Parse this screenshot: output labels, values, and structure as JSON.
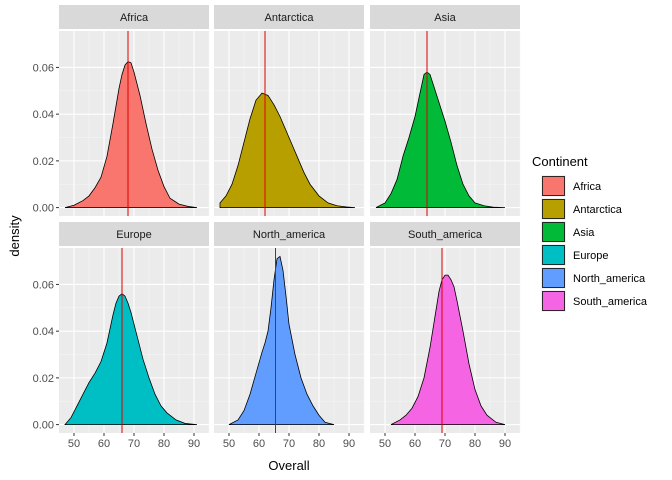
{
  "chart_data": {
    "type": "area",
    "facet_by": "Continent",
    "xlabel": "Overall",
    "ylabel": "density",
    "xlim": [
      45,
      95
    ],
    "ylim": [
      -0.0036,
      0.0756
    ],
    "x_ticks": [
      50,
      60,
      70,
      80,
      90
    ],
    "y_ticks": [
      0.0,
      0.02,
      0.04,
      0.06
    ],
    "y_tick_labels": [
      "0.00",
      "0.02",
      "0.04",
      "0.06"
    ],
    "grid": true,
    "legend": {
      "title": "Continent",
      "placement": "right"
    },
    "series": [
      {
        "name": "Africa",
        "color": "#F8766D",
        "vline": 68,
        "x": [
          47,
          50,
          53,
          55,
          57,
          59,
          61,
          63,
          65,
          66,
          67,
          68,
          69,
          70,
          72,
          74,
          76,
          78,
          80,
          82,
          85,
          88,
          91
        ],
        "y": [
          0.0,
          0.001,
          0.003,
          0.005,
          0.0085,
          0.013,
          0.022,
          0.036,
          0.051,
          0.057,
          0.061,
          0.0625,
          0.062,
          0.058,
          0.048,
          0.036,
          0.025,
          0.016,
          0.009,
          0.004,
          0.0015,
          0.0005,
          0.0
        ]
      },
      {
        "name": "Antarctica",
        "color": "#B79F00",
        "vline": 62,
        "x": [
          47,
          49,
          51,
          53,
          55,
          57,
          59,
          61,
          63,
          65,
          67,
          69,
          71,
          73,
          75,
          77,
          80,
          83,
          86,
          89,
          92
        ],
        "y": [
          0.002,
          0.005,
          0.01,
          0.018,
          0.028,
          0.038,
          0.046,
          0.049,
          0.048,
          0.044,
          0.039,
          0.033,
          0.027,
          0.021,
          0.015,
          0.01,
          0.005,
          0.002,
          0.0008,
          0.0003,
          0.0
        ]
      },
      {
        "name": "Asia",
        "color": "#00BA38",
        "vline": 64,
        "x": [
          47,
          50,
          52,
          54,
          56,
          58,
          60,
          62,
          63,
          64,
          65,
          66,
          67,
          68,
          70,
          72,
          74,
          76,
          78,
          80,
          83,
          86,
          90
        ],
        "y": [
          0.0,
          0.002,
          0.006,
          0.012,
          0.022,
          0.03,
          0.039,
          0.051,
          0.057,
          0.058,
          0.057,
          0.053,
          0.049,
          0.045,
          0.037,
          0.028,
          0.018,
          0.01,
          0.005,
          0.002,
          0.0008,
          0.0002,
          0.0
        ]
      },
      {
        "name": "Europe",
        "color": "#00BFC4",
        "vline": 66,
        "x": [
          47,
          49,
          51,
          53,
          55,
          57,
          59,
          61,
          63,
          64,
          65,
          66,
          67,
          68,
          69,
          71,
          73,
          75,
          77,
          79,
          81,
          84,
          87,
          91
        ],
        "y": [
          0.0,
          0.003,
          0.008,
          0.013,
          0.018,
          0.022,
          0.027,
          0.035,
          0.047,
          0.052,
          0.055,
          0.056,
          0.055,
          0.052,
          0.048,
          0.038,
          0.028,
          0.02,
          0.013,
          0.008,
          0.005,
          0.002,
          0.0005,
          0.0
        ]
      },
      {
        "name": "North_america",
        "color": "#619CFF",
        "vline": 65.5,
        "x": [
          50,
          53,
          55,
          57,
          59,
          61,
          62,
          63,
          64,
          65,
          66,
          67,
          68,
          69,
          70,
          72,
          74,
          76,
          78,
          80,
          82,
          85
        ],
        "y": [
          0.0,
          0.002,
          0.006,
          0.013,
          0.022,
          0.031,
          0.035,
          0.04,
          0.05,
          0.062,
          0.071,
          0.072,
          0.066,
          0.055,
          0.043,
          0.03,
          0.02,
          0.013,
          0.008,
          0.004,
          0.001,
          0.0
        ]
      },
      {
        "name": "South_america",
        "color": "#F564E3",
        "vline": 69,
        "x": [
          52,
          55,
          57,
          59,
          61,
          63,
          65,
          67,
          68,
          69,
          70,
          71,
          72,
          73,
          74,
          76,
          78,
          80,
          82,
          84,
          87,
          90
        ],
        "y": [
          0.0,
          0.002,
          0.004,
          0.007,
          0.012,
          0.02,
          0.033,
          0.049,
          0.057,
          0.062,
          0.064,
          0.064,
          0.062,
          0.059,
          0.053,
          0.04,
          0.026,
          0.015,
          0.008,
          0.004,
          0.001,
          0.0
        ]
      }
    ]
  }
}
